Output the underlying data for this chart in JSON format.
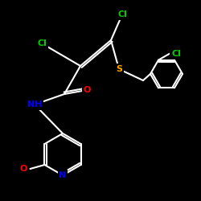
{
  "background": "#000000",
  "atom_colors": {
    "C": "#ffffff",
    "N": "#0000ff",
    "O": "#ff0000",
    "S": "#ffa500",
    "Cl": "#00cc00"
  },
  "bond_color": "#ffffff",
  "bond_width": 1.5,
  "font_size": 8,
  "fig_size": [
    2.5,
    2.5
  ],
  "dpi": 100
}
